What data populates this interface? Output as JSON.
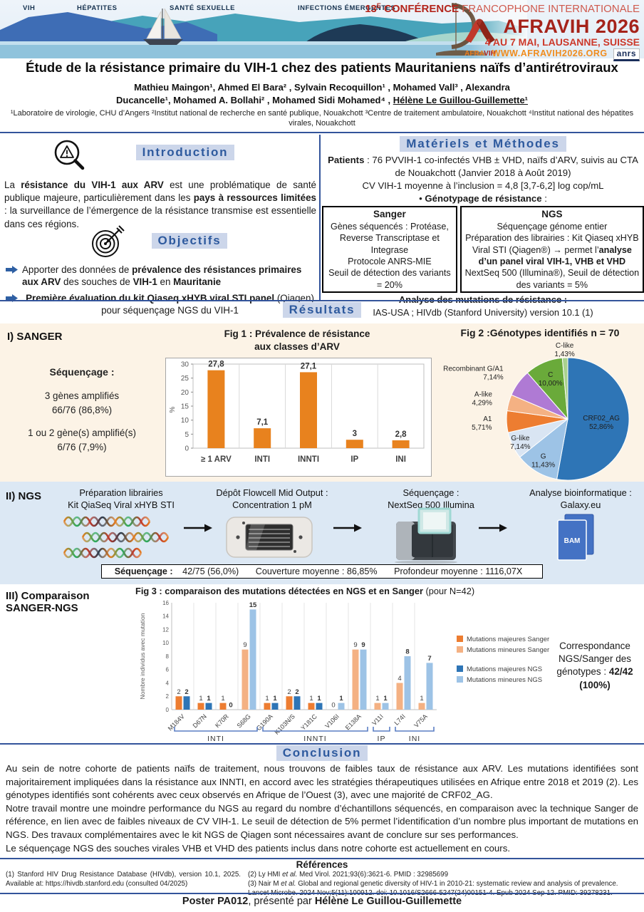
{
  "banner": {
    "topics": [
      "VIH",
      "HÉPATITES",
      "SANTÉ SEXUELLE",
      "INFECTIONS ÉMERGENTES"
    ],
    "conf_line1_dark": "13^E^ CONFÉRENCE",
    "conf_line1_light": " FRANCOPHONE INTERNATIONALE",
    "brand": "AFRAVIH 2026",
    "dates": "4 AU 7 MAI, LAUSANNE, SUISSE",
    "website": "WWW.AFRAVIH2026.ORG",
    "anrs_label": "anrs",
    "ribbon_label_a": "AFRA",
    "ribbon_label_b": "VIH"
  },
  "title": "Étude de la résistance primaire du VIH-1 chez des patients Mauritaniens naïfs d’antirétroviraux",
  "authors": {
    "line1": "Mathieu Maingon¹, Ahmed El Bara² , Sylvain Recoquillon¹ , Mohamed Vall³ , Alexandra",
    "line2": "Ducancelle¹, Mohamed A. Bollahi² , Mohamed Sidi Mohamed⁴ , __Hélène Le Guillou-Guillemette¹__",
    "affiliations": "¹Laboratoire de virologie, CHU d’Angers ²Institut national de recherche en santé publique, Nouakchott ³Centre de traitement ambulatoire, Nouakchott ⁴Institut national des hépatites virales, Nouakchott"
  },
  "intro": {
    "heading": "Introduction",
    "text": "La **résistance du VIH-1 aux ARV** est une problématique de santé publique majeure, particulièrement dans les **pays à ressources limitées** : la surveillance de l’émergence de la résistance transmise est essentielle dans ces régions."
  },
  "objectives": {
    "heading": "Objectifs",
    "items": [
      "Apporter des données de **prévalence des résistances primaires aux ARV** des souches de **VIH-1** en **Mauritanie**",
      "**Première évaluation du kit Qiaseq xHYB viral STI panel** (Qiagen) pour séquençage NGS du VIH-1"
    ]
  },
  "methods": {
    "heading": "Matériels et Méthodes",
    "patients": "**Patients** : 76 PVVIH-1 co-infectés VHB ± VHD, naïfs d’ARV, suivis au CTA de Nouakchott (Janvier 2018 à Août 2019)",
    "cv": "CV VIH-1 moyenne à l’inclusion = 4,8 [3,7-6,2] log cop/mL",
    "genotyping": "• **Génotypage de résistance** :",
    "sanger": {
      "title": "Sanger",
      "lines": [
        "Gènes séquencés : Protéase, Reverse Transcriptase et Integrase",
        "Protocole ANRS-MIE",
        "Seuil de détection des variants = 20%"
      ]
    },
    "ngs": {
      "title": "NGS",
      "lines": [
        "Séquençage génome entier",
        "Préparation des librairies : Kit Qiaseq xHYB Viral STI (Qiagen®) → permet l’**analyse d’un panel viral VIH-1, VHB et VHD**",
        "NextSeq 500 (Illumina®), Seuil de détection des variants = 5%"
      ]
    },
    "analysis_title": "**Analyse des mutations de résistance :**",
    "analysis_text": "IAS-USA ; HIVdb (Stanford University) version 10.1 (1)"
  },
  "results": {
    "heading": "Résultats",
    "sanger_label": "I) SANGER",
    "sequencing_heading": "**Séquençage :**",
    "sequencing_items": [
      "3 gènes amplifiés",
      "66/76 (86,8%)",
      "1 ou 2 gène(s) amplifié(s)",
      "6/76 (7,9%)"
    ]
  },
  "ngs_section": {
    "label": "II) NGS",
    "steps": [
      {
        "line1": "Préparation librairies",
        "line2": "Kit QiaSeq Viral xHYB STI"
      },
      {
        "line1": "Dépôt Flowcell Mid Output :",
        "line2": "Concentration 1 pM"
      },
      {
        "line1": "Séquençage :",
        "line2": "NextSeq 500 Illumina"
      },
      {
        "line1": "Analyse bioinformatique :",
        "line2": "Galaxy.eu"
      }
    ],
    "bam_label": "BAM",
    "stats": {
      "label": "**Séquençage :**",
      "v1": "42/75 (56,0%)",
      "v2": "Couverture moyenne : 86,85%",
      "v3": "Profondeur moyenne : 1116,07X"
    }
  },
  "comparison": {
    "label_line1": "III) Comparaison",
    "label_line2": "SANGER-NGS",
    "fig3_title": "**Fig 3 : comparaison des mutations détectées en NGS et en Sanger** (pour N=42)",
    "correspondence": "Correspondance NGS/Sanger des génotypes : **42/42 (100%)**"
  },
  "conclusion": {
    "heading": "Conclusion",
    "paragraphs": [
      "Au sein de notre cohorte de patients naïfs de traitement, nous trouvons de faibles taux de résistance aux ARV. Les mutations identifiées sont majoritairement impliquées dans la résistance aux INNTI, en accord avec les stratégies thérapeutiques utilisées en Afrique entre 2018 et 2019 (2). Les génotypes identifiés sont cohérents avec ceux observés en Afrique de l’Ouest (3), avec une majorité de CRF02_AG.",
      "Notre travail montre une moindre performance du NGS au regard du nombre d’échantillons séquencés, en comparaison avec la technique Sanger de référence, en lien avec de faibles niveaux de CV VIH-1. Le seuil de détection de 5% permet l’identification d’un nombre plus important de mutations en NGS. Des travaux complémentaires avec le kit NGS de Qiagen sont nécessaires avant de conclure sur ses performances.",
      "Le séquençage NGS des souches virales VHB et VHD des patients inclus dans notre cohorte est actuellement en cours."
    ]
  },
  "references": {
    "heading": "Références",
    "ref1": "(1) Stanford HIV Drug Resistance Database (HIVdb), version 10.1, 2025. Available at: https://hivdb.stanford.edu (consulted 04/2025)",
    "ref2": "(2) Ly HMI *et al.*  Med Virol. 2021;93(6):3621-6. PMID : 32985699",
    "ref3": "(3) Nair M *et al.* Global and regional genetic diversity of HIV-1 in 2010-21: systematic review and analysis of prevalence. Lancet Microbe. 2024 Nov;5(11):100912. doi: 10.1016/S2666-5247(24)00151-4. Epub 2024 Sep 12. PMID: 39278231."
  },
  "footer": "**Poster PA012**, présenté par **Hélène Le Guillou-Guillemette**",
  "chart_data": [
    {
      "id": "fig1",
      "type": "bar",
      "title_line1": "Fig 1 : Prévalence de résistance",
      "title_line2": "aux classes d’ARV",
      "categories": [
        "≥ 1 ARV",
        "INTI",
        "INNTI",
        "IP",
        "INI"
      ],
      "values": [
        27.8,
        7.1,
        27.1,
        3,
        2.8
      ],
      "value_labels": [
        "27,8",
        "7,1",
        "27,1",
        "3",
        "2,8"
      ],
      "ylabel": "%",
      "ylim": [
        0,
        30
      ],
      "ytick_step": 5,
      "bar_color": "#E8821E",
      "grid": "vertical-separators"
    },
    {
      "id": "fig2",
      "type": "pie",
      "title": "Fig 2 :Génotypes identifiés n = 70",
      "start_angle_deg": 0,
      "direction": "clockwise-from-top",
      "slices": [
        {
          "label": "CRF02_AG",
          "pct": 52.86,
          "pct_label": "52,86%",
          "color": "#2E75B6",
          "label_f": 0.55,
          "anchor": "middle"
        },
        {
          "label": "G",
          "pct": 11.43,
          "pct_label": "11,43%",
          "color": "#9DC3E6",
          "label_f": 0.78,
          "anchor": "middle"
        },
        {
          "label": "G-like",
          "pct": 7.14,
          "pct_label": "7,14%",
          "color": "#D9E5F3",
          "label_f": 0.86,
          "anchor": "middle"
        },
        {
          "label": "A1",
          "pct": 5.71,
          "pct_label": "5,71%",
          "color": "#ED7D31",
          "label_f": 1.24,
          "anchor": "end"
        },
        {
          "label": "A-like",
          "pct": 4.29,
          "pct_label": "4,29%",
          "color": "#F4B183",
          "label_f": 1.28,
          "anchor": "end"
        },
        {
          "label": "Recombinant G/A1",
          "pct": 7.14,
          "pct_label": "7,14%",
          "color": "#AF7AD4",
          "label_f": 1.3,
          "anchor": "end"
        },
        {
          "label": "C",
          "pct": 10.0,
          "pct_label": "10,00%",
          "color": "#6AAA3A",
          "label_f": 0.72,
          "anchor": "middle"
        },
        {
          "label": "C-like",
          "pct": 1.43,
          "pct_label": "1,43%",
          "color": "#A9D18E",
          "label_f": 1.14,
          "anchor": "middle"
        }
      ]
    },
    {
      "id": "fig3",
      "type": "grouped-bar",
      "ylabel": "Nombre individus avec mutation",
      "ylim": [
        0,
        16
      ],
      "ytick_step": 2,
      "categories": [
        {
          "name": "M184V",
          "group": "INTI",
          "kind": "majeure",
          "sanger": 2,
          "ngs": 2
        },
        {
          "name": "D67N",
          "group": "INTI",
          "kind": "majeure",
          "sanger": 1,
          "ngs": 1
        },
        {
          "name": "K70R",
          "group": "INTI",
          "kind": "majeure",
          "sanger": 1,
          "ngs": 0
        },
        {
          "name": "S68G",
          "group": "INTI",
          "kind": "mineure",
          "sanger": 9,
          "ngs": 15
        },
        {
          "name": "G190A",
          "group": "INNTI",
          "kind": "majeure",
          "sanger": 1,
          "ngs": 1
        },
        {
          "name": "K103N/S",
          "group": "INNTI",
          "kind": "majeure",
          "sanger": 2,
          "ngs": 2
        },
        {
          "name": "Y181C",
          "group": "INNTI",
          "kind": "majeure",
          "sanger": 1,
          "ngs": 1
        },
        {
          "name": "V106I",
          "group": "INNTI",
          "kind": "mineure",
          "sanger": 0,
          "ngs": 1
        },
        {
          "name": "E138A",
          "group": "INNTI",
          "kind": "mineure",
          "sanger": 9,
          "ngs": 9
        },
        {
          "name": "V11I",
          "group": "IP",
          "kind": "mineure",
          "sanger": 1,
          "ngs": 1
        },
        {
          "name": "L74I",
          "group": "INI",
          "kind": "mineure",
          "sanger": 4,
          "ngs": 8
        },
        {
          "name": "V75A",
          "group": "INI",
          "kind": "mineure",
          "sanger": 1,
          "ngs": 7
        }
      ],
      "colors": {
        "majeure_sanger": "#ED7D31",
        "mineure_sanger": "#F4B183",
        "majeure_ngs": "#2E75B6",
        "mineure_ngs": "#9DC3E6"
      },
      "legend": [
        {
          "label": "Mutations majeures Sanger",
          "color": "#ED7D31"
        },
        {
          "label": "Mutations mineures Sanger",
          "color": "#F4B183"
        },
        {
          "label": "Mutations majeures NGS",
          "color": "#2E75B6"
        },
        {
          "label": "Mutations mineures NGS",
          "color": "#9DC3E6"
        }
      ],
      "legend_position": "right"
    }
  ]
}
